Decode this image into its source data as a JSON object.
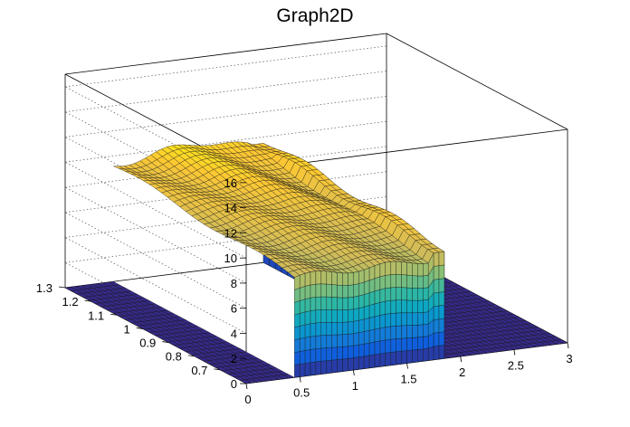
{
  "chart_data": {
    "type": "surface3d",
    "title": "Graph2D",
    "xlabel": "",
    "ylabel": "",
    "zlabel": "",
    "xlim": [
      0,
      3
    ],
    "ylim": [
      0.6,
      1.3
    ],
    "zlim": [
      0,
      17
    ],
    "x_ticks": [
      "0",
      "0.5",
      "1",
      "1.5",
      "2",
      "2.5",
      "3"
    ],
    "y_ticks": [
      "0.7",
      "0.8",
      "0.9",
      "1",
      "1.1",
      "1.2",
      "1.3"
    ],
    "z_ticks": [
      "0",
      "2",
      "4",
      "6",
      "8",
      "10",
      "12",
      "14",
      "16"
    ],
    "grid": true,
    "palette": "kBird",
    "regions": [
      {
        "name": "",
        "x_range": [
          0,
          0.45
        ],
        "y_range": [
          0.6,
          1.3
        ],
        "z": 0
      },
      {
        "name": "",
        "x_range": [
          0.45,
          1.7
        ],
        "y_range": [
          0.6,
          1.3
        ],
        "z_front": 8.0,
        "z_back": 9.2,
        "z_peak": 10.2
      },
      {
        "name": "",
        "x_range": [
          1.7,
          1.85
        ],
        "y_range": [
          0.6,
          1.3
        ],
        "z": 9.8
      },
      {
        "name": "",
        "x_range": [
          1.85,
          3.0
        ],
        "y_range": [
          0.6,
          1.3
        ],
        "z": 0
      }
    ],
    "colors": [
      "#352a87",
      "#0f5cdd",
      "#1481d6",
      "#06a4ca",
      "#2eb7a4",
      "#87bf77",
      "#d1bb59",
      "#fec832",
      "#f9fb0e"
    ]
  }
}
